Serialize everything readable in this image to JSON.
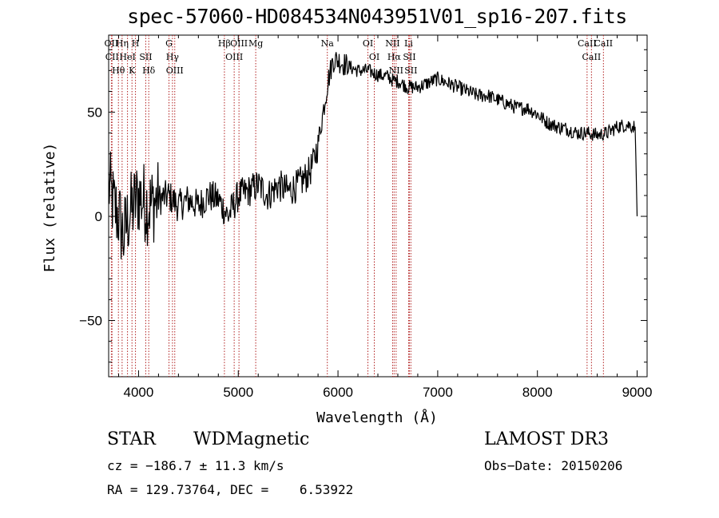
{
  "title": "spec-57060-HD084534N043951V01_sp16-207.fits",
  "chart_data": {
    "type": "line",
    "xlabel": "Wavelength (Å)",
    "ylabel": "Flux (relative)",
    "xlim": [
      3700,
      9100
    ],
    "ylim": [
      -77,
      87
    ],
    "xticks": [
      4000,
      5000,
      6000,
      7000,
      8000,
      9000
    ],
    "yticks": [
      -50,
      0,
      50
    ],
    "grid": false,
    "series": [
      {
        "x": [
          3700,
          3750,
          3800,
          3850,
          3900,
          3950,
          4000,
          4100,
          4200,
          4300,
          4400,
          4500,
          4600,
          4700,
          4800,
          4900,
          5000,
          5100,
          5200,
          5300,
          5400,
          5500,
          5600,
          5700,
          5750,
          5800,
          5850,
          5900,
          5950,
          6000,
          6100,
          6200,
          6300,
          6400,
          6500,
          6560,
          6600,
          6700,
          6800,
          6900,
          7000,
          7100,
          7200,
          7300,
          7400,
          7500,
          7600,
          7700,
          7800,
          7900,
          8000,
          8100,
          8200,
          8300,
          8400,
          8500,
          8600,
          8700,
          8800,
          8900,
          8980,
          9000
        ],
        "y": [
          15,
          5,
          0,
          -10,
          0,
          5,
          10,
          5,
          8,
          10,
          5,
          8,
          5,
          10,
          8,
          0,
          10,
          12,
          15,
          10,
          15,
          12,
          15,
          20,
          25,
          35,
          50,
          65,
          75,
          75,
          72,
          70,
          70,
          68,
          67,
          65,
          65,
          62,
          62,
          64,
          66,
          64,
          62,
          60,
          58,
          58,
          56,
          54,
          52,
          52,
          49,
          45,
          43,
          42,
          40,
          40,
          39,
          40,
          43,
          44,
          43,
          0
        ]
      }
    ],
    "lines": [
      {
        "name": "Hθ",
        "x": 3798
      },
      {
        "name": "OII",
        "x": 3727
      },
      {
        "name": "CII",
        "x": 3734
      },
      {
        "name": "K",
        "x": 3934
      },
      {
        "name": "H",
        "x": 3969
      },
      {
        "name": "HeI",
        "x": 3889
      },
      {
        "name": "Hη",
        "x": 3835
      },
      {
        "name": "Hδ",
        "x": 4102
      },
      {
        "name": "SII",
        "x": 4072
      },
      {
        "name": "OIII",
        "x": 4363
      },
      {
        "name": "Hγ",
        "x": 4340
      },
      {
        "name": "G",
        "x": 4305
      },
      {
        "name": "Hβ",
        "x": 4861
      },
      {
        "name": "OIII",
        "x": 4959
      },
      {
        "name": "OIII",
        "x": 5007
      },
      {
        "name": "Mg",
        "x": 5175
      },
      {
        "name": "Na",
        "x": 5893
      },
      {
        "name": "OI",
        "x": 6300
      },
      {
        "name": "OI",
        "x": 6364
      },
      {
        "name": "Hα",
        "x": 6563
      },
      {
        "name": "NII",
        "x": 6548
      },
      {
        "name": "NII",
        "x": 6583
      },
      {
        "name": "SII",
        "x": 6716
      },
      {
        "name": "SII",
        "x": 6731
      },
      {
        "name": "Li",
        "x": 6708
      },
      {
        "name": "CaII",
        "x": 8498
      },
      {
        "name": "CaII",
        "x": 8542
      },
      {
        "name": "CaII",
        "x": 8662
      }
    ]
  },
  "info": {
    "object_type": "STAR",
    "subclass": "WDMagnetic",
    "survey": "LAMOST DR3",
    "cz": "cz = −186.7 ± 11.3 km/s",
    "obs_date": "Obs−Date: 20150206",
    "coords": "RA = 129.73764, DEC =    6.53922"
  }
}
